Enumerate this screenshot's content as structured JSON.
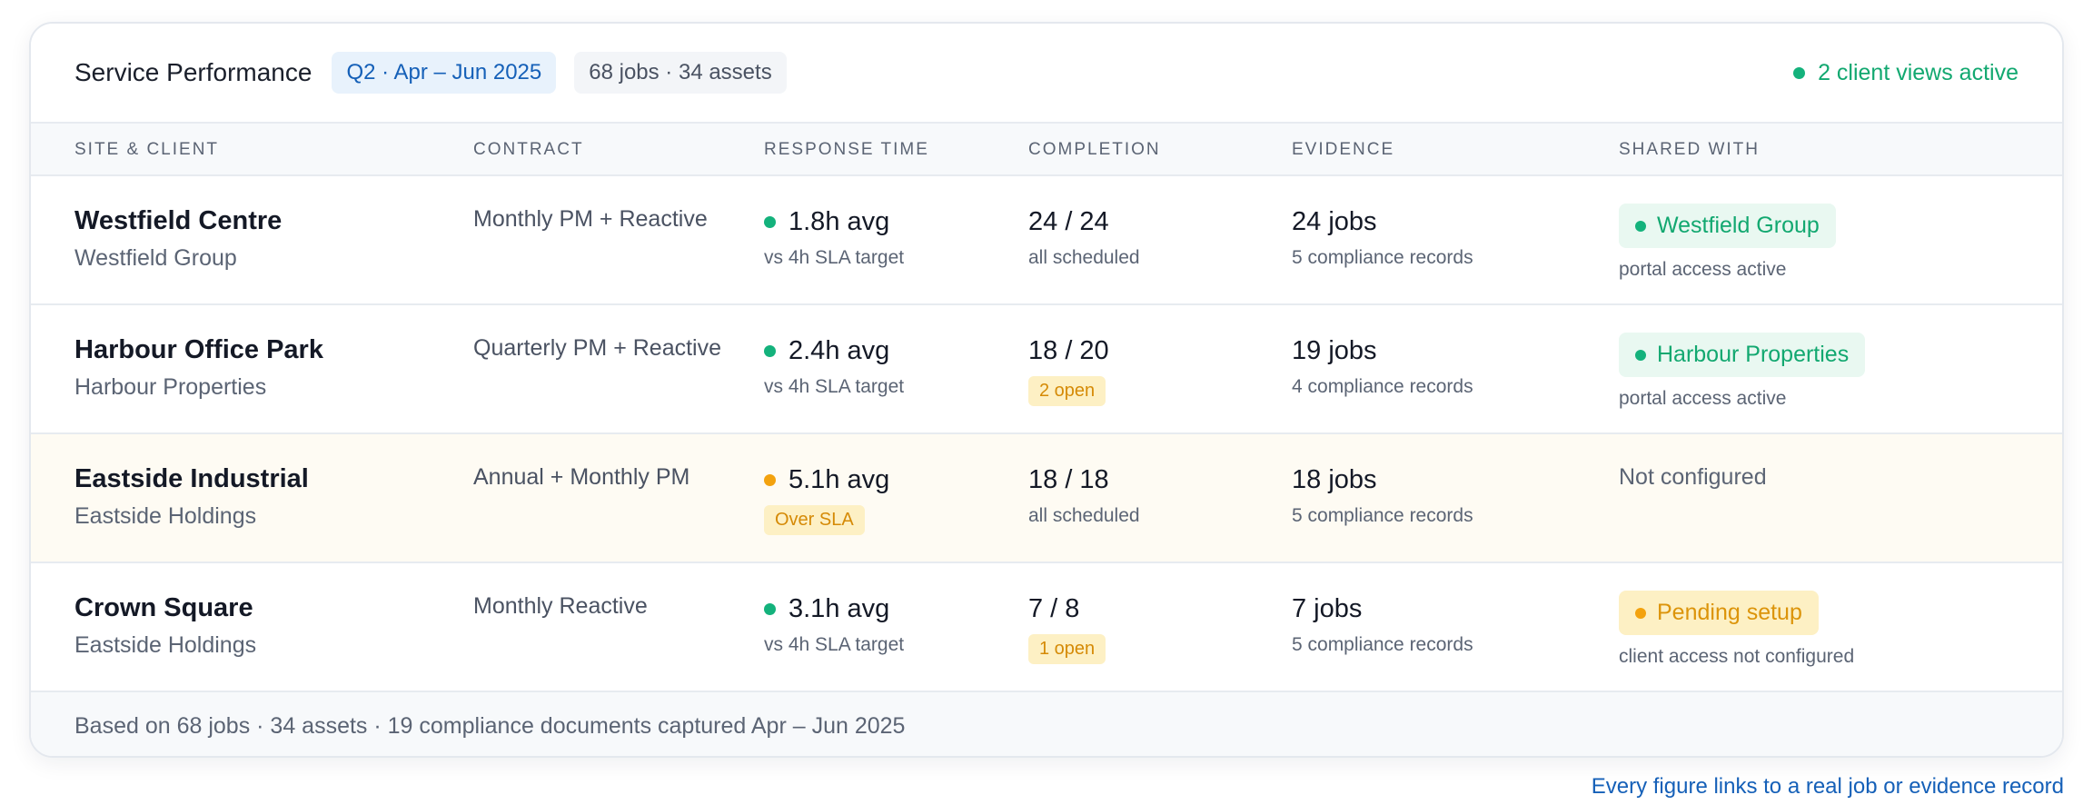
{
  "header": {
    "title": "Service Performance",
    "period": "Q2 · Apr – Jun 2025",
    "jobs_summary": "68 jobs · 34 assets",
    "status": "2 client views active",
    "status_color": "#14b27c"
  },
  "columns": [
    "SITE & CLIENT",
    "CONTRACT",
    "RESPONSE TIME",
    "COMPLETION",
    "EVIDENCE",
    "SHARED WITH"
  ],
  "rows": [
    {
      "site": "Westfield Centre",
      "client": "Westfield Group",
      "contract": "Monthly PM + Reactive",
      "response": "1.8h avg",
      "response_status": "ok",
      "response_note": "vs 4h SLA target",
      "completion": "24 / 24",
      "completion_note": "all scheduled",
      "evidence": "24 jobs",
      "evidence_note": "5 compliance records",
      "shared": "Westfield Group",
      "shared_status": "active",
      "shared_note": "portal access active"
    },
    {
      "site": "Harbour Office Park",
      "client": "Harbour Properties",
      "contract": "Quarterly PM + Reactive",
      "response": "2.4h avg",
      "response_status": "ok",
      "response_note": "vs 4h SLA target",
      "completion": "18 / 20",
      "completion_tag": "2 open",
      "evidence": "19 jobs",
      "evidence_note": "4 compliance records",
      "shared": "Harbour Properties",
      "shared_status": "active",
      "shared_note": "portal access active"
    },
    {
      "site": "Eastside Industrial",
      "client": "Eastside Holdings",
      "contract": "Annual + Monthly PM",
      "response": "5.1h avg",
      "response_status": "warn",
      "response_tag": "Over SLA",
      "completion": "18 / 18",
      "completion_note": "all scheduled",
      "evidence": "18 jobs",
      "evidence_note": "5 compliance records",
      "shared": "Not configured",
      "shared_status": "none"
    },
    {
      "site": "Crown Square",
      "client": "Eastside Holdings",
      "contract": "Monthly Reactive",
      "response": "3.1h avg",
      "response_status": "ok",
      "response_note": "vs 4h SLA target",
      "completion": "7 / 8",
      "completion_tag": "1 open",
      "evidence": "7 jobs",
      "evidence_note": "5 compliance records",
      "shared": "Pending setup",
      "shared_status": "pending",
      "shared_note": "client access not configured"
    }
  ],
  "footer": "Based on 68 jobs · 34 assets · 19 compliance documents captured Apr – Jun 2025",
  "tagline": "Every figure links to a real job or evidence record",
  "colors": {
    "ok": "#14b27c",
    "warn": "#f3a20e",
    "accent_blue": "#1560b8"
  }
}
